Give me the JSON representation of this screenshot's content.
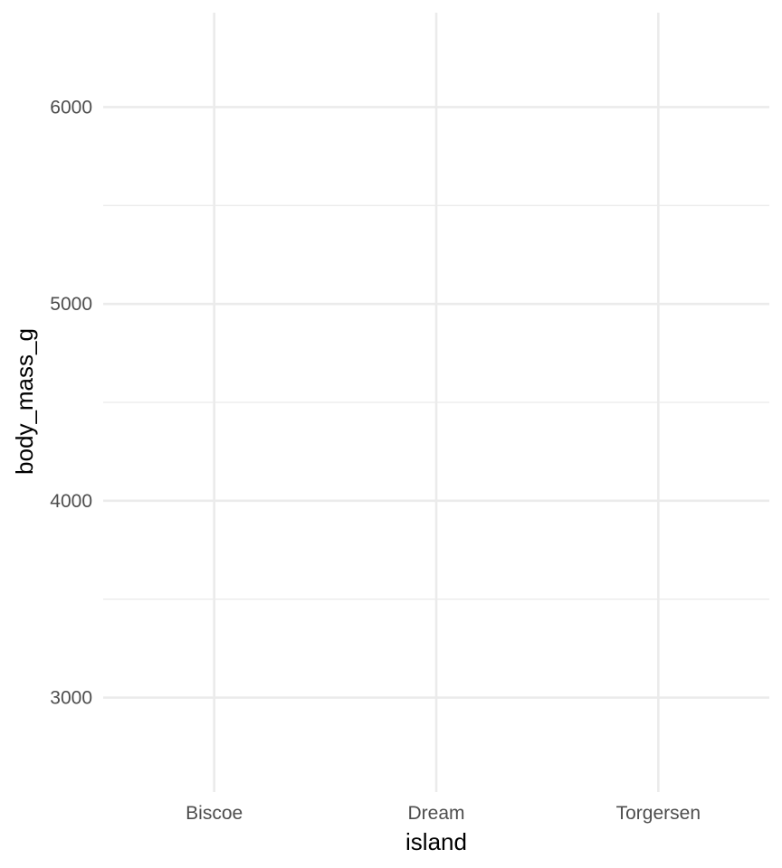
{
  "chart_data": {
    "type": "boxplot",
    "title": "",
    "xlabel": "island",
    "ylabel": "body_mass_g",
    "categories": [
      "Biscoe",
      "Dream",
      "Torgersen"
    ],
    "ylim": [
      2520,
      6480
    ],
    "y_major_ticks": [
      3000,
      4000,
      5000,
      6000
    ],
    "y_minor_ticks": [
      3500,
      4500,
      5500
    ],
    "grid": true,
    "legend": "none",
    "series": [],
    "colors": {
      "grid": "#ebebeb",
      "tick_text": "#4d4d4d",
      "axis_title": "#000000",
      "background": "#ffffff"
    }
  }
}
